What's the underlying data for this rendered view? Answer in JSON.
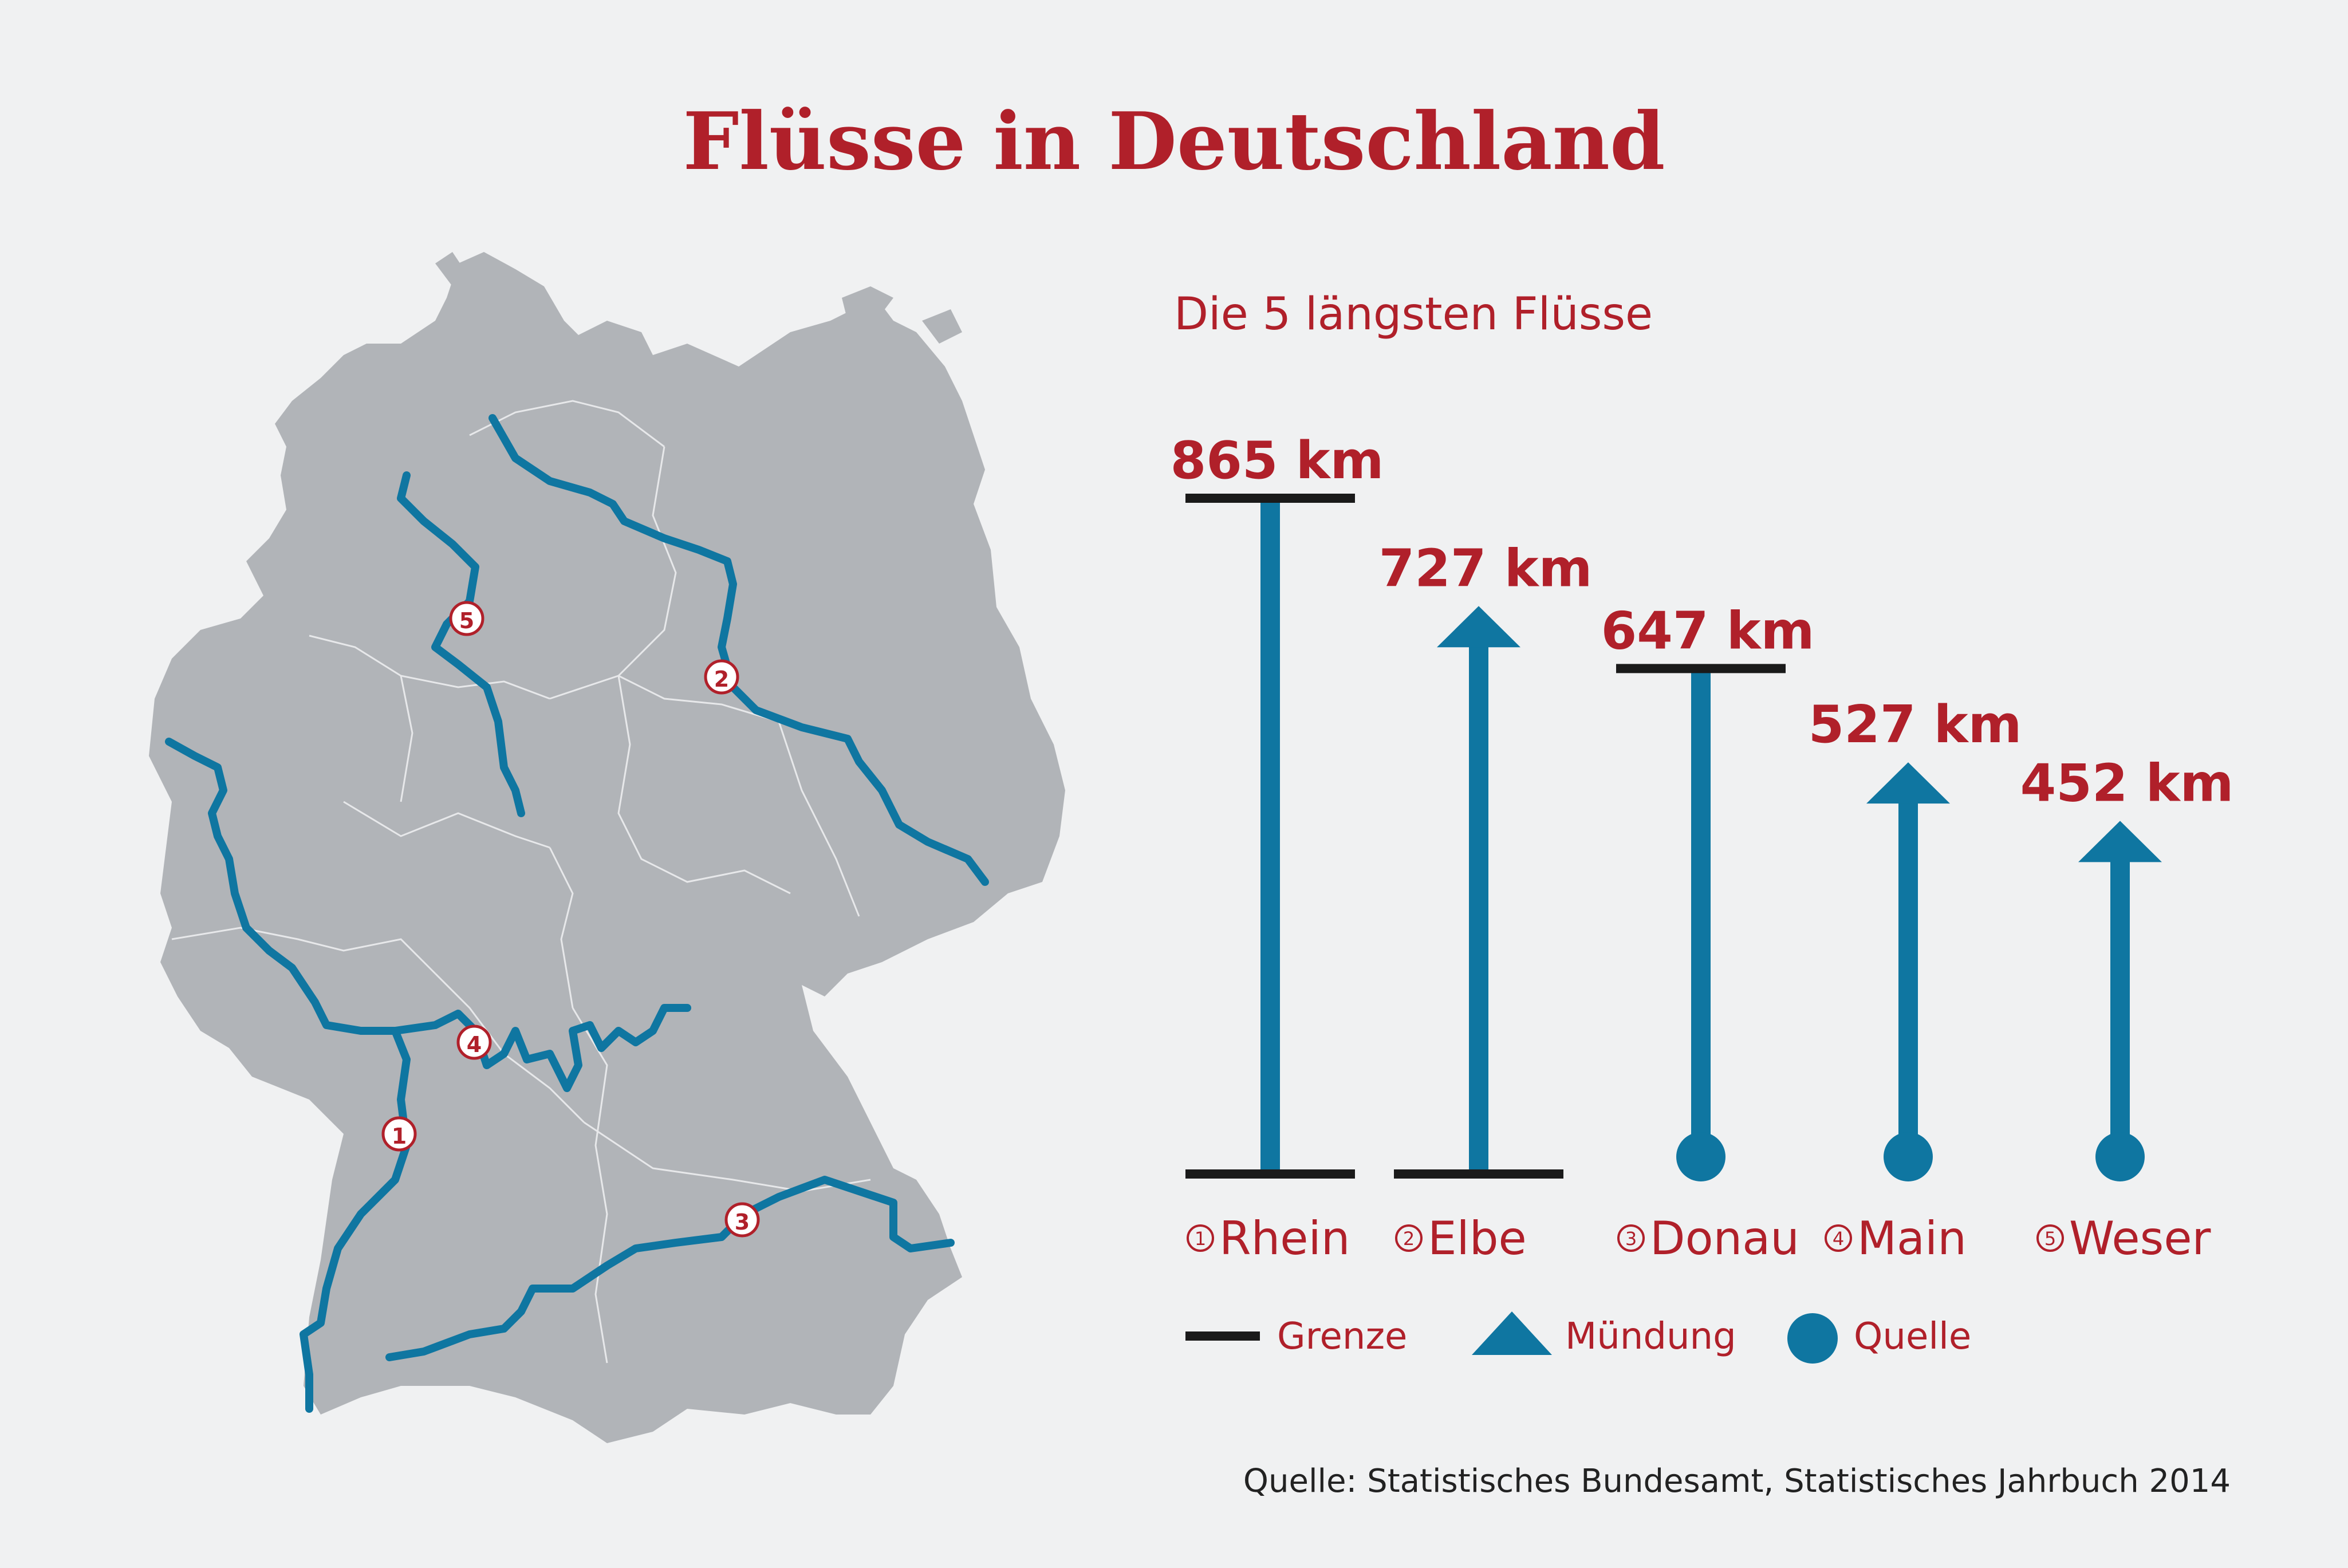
{
  "title": "Flüsse in Deutschland",
  "subtitle": "Die 5 längsten Flüsse",
  "source": "Quelle: Statistisches Bundesamt, Statistisches Jahrbuch 2014",
  "colors": {
    "accent": "#b0202a",
    "river": "#0f76a1",
    "land": "#b1b4b8",
    "boundary": "#1a1a1a",
    "background": "#f0f1f2"
  },
  "legend": {
    "grenze": "Grenze",
    "muendung": "Mündung",
    "quelle": "Quelle"
  },
  "map": {
    "markers": [
      "1",
      "2",
      "3",
      "4",
      "5"
    ]
  },
  "chart_data": {
    "type": "bar",
    "unit": "km",
    "categories": [
      "Rhein",
      "Elbe",
      "Donau",
      "Main",
      "Weser"
    ],
    "numbers": [
      "1",
      "2",
      "3",
      "4",
      "5"
    ],
    "values": [
      865,
      727,
      647,
      527,
      452
    ],
    "value_labels": [
      "865 km",
      "727 km",
      "647 km",
      "527 km",
      "452 km"
    ],
    "start_marker": [
      "Grenze",
      "Grenze",
      "Quelle",
      "Quelle",
      "Quelle"
    ],
    "end_marker": [
      "Grenze",
      "Mündung",
      "Grenze",
      "Mündung",
      "Mündung"
    ]
  }
}
